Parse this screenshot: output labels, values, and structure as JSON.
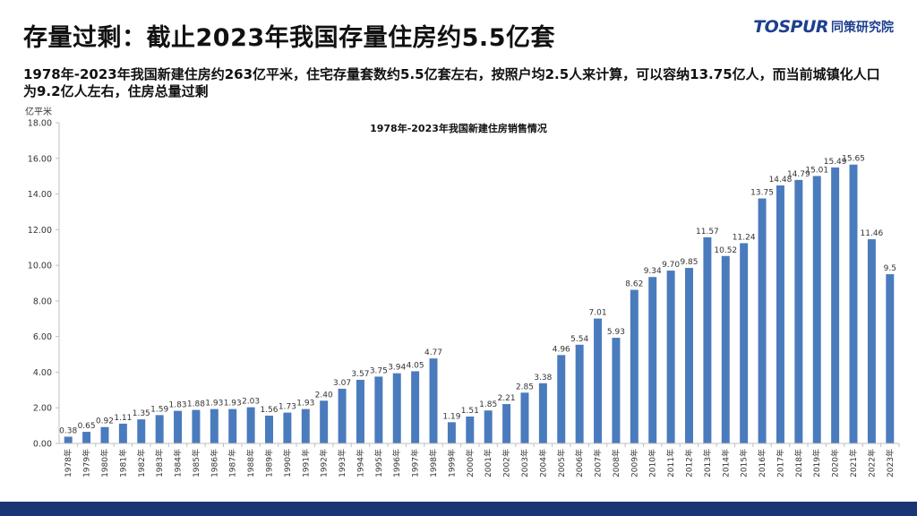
{
  "page": {
    "title": "存量过剩：截止2023年我国存量住房约5.5亿套",
    "subtitle": "1978年-2023年我国新建住房约263亿平米，住宅存量套数约5.5亿套左右，按照户均2.5人来计算，可以容纳13.75亿人，而当前城镇化人口为9.2亿人左右，住房总量过剩"
  },
  "logo": {
    "mark": "TOSPUR",
    "sub": "同策研究院"
  },
  "colors": {
    "bar": "#4a7bbd",
    "axis": "#bfbfbf",
    "text": "#333333",
    "footer": "#1a3575"
  },
  "chart_data": {
    "type": "bar",
    "title": "1978年-2023年我国新建住房销售情况",
    "ylabel": "亿平米",
    "ylim": [
      0,
      18
    ],
    "yticks": [
      "0.00",
      "2.00",
      "4.00",
      "6.00",
      "8.00",
      "10.00",
      "12.00",
      "14.00",
      "16.00",
      "18.00"
    ],
    "grid": false,
    "categories": [
      "1978年",
      "1979年",
      "1980年",
      "1981年",
      "1982年",
      "1983年",
      "1984年",
      "1985年",
      "1986年",
      "1987年",
      "1988年",
      "1989年",
      "1990年",
      "1991年",
      "1992年",
      "1993年",
      "1994年",
      "1995年",
      "1996年",
      "1997年",
      "1998年",
      "1999年",
      "2000年",
      "2001年",
      "2002年",
      "2003年",
      "2004年",
      "2005年",
      "2006年",
      "2007年",
      "2008年",
      "2009年",
      "2010年",
      "2011年",
      "2012年",
      "2013年",
      "2014年",
      "2015年",
      "2016年",
      "2017年",
      "2018年",
      "2019年",
      "2020年",
      "2021年",
      "2022年",
      "2023年"
    ],
    "values": [
      0.38,
      0.65,
      0.92,
      1.11,
      1.35,
      1.59,
      1.83,
      1.88,
      1.93,
      1.93,
      2.03,
      1.56,
      1.73,
      1.93,
      2.4,
      3.07,
      3.57,
      3.75,
      3.94,
      4.05,
      4.77,
      1.19,
      1.51,
      1.85,
      2.21,
      2.85,
      3.38,
      4.96,
      5.54,
      7.01,
      5.93,
      8.62,
      9.34,
      9.7,
      9.85,
      11.57,
      10.52,
      11.24,
      13.75,
      14.48,
      14.79,
      15.01,
      15.49,
      15.65,
      11.46,
      9.5
    ],
    "value_labels": [
      "0.38",
      "0.65",
      "0.92",
      "1.11",
      "1.35",
      "1.59",
      "1.83",
      "1.88",
      "1.93",
      "1.93",
      "2.03",
      "1.56",
      "1.73",
      "1.93",
      "2.40",
      "3.07",
      "3.57",
      "3.75",
      "3.94",
      "4.05",
      "4.77",
      "1.19",
      "1.51",
      "1.85",
      "2.21",
      "2.85",
      "3.38",
      "4.96",
      "5.54",
      "7.01",
      "5.93",
      "8.62",
      "9.34",
      "9.70",
      "9.85",
      "11.57",
      "10.52",
      "11.24",
      "13.75",
      "14.48",
      "14.79",
      "15.01",
      "15.49",
      "15.65",
      "11.46",
      "9.5"
    ]
  }
}
